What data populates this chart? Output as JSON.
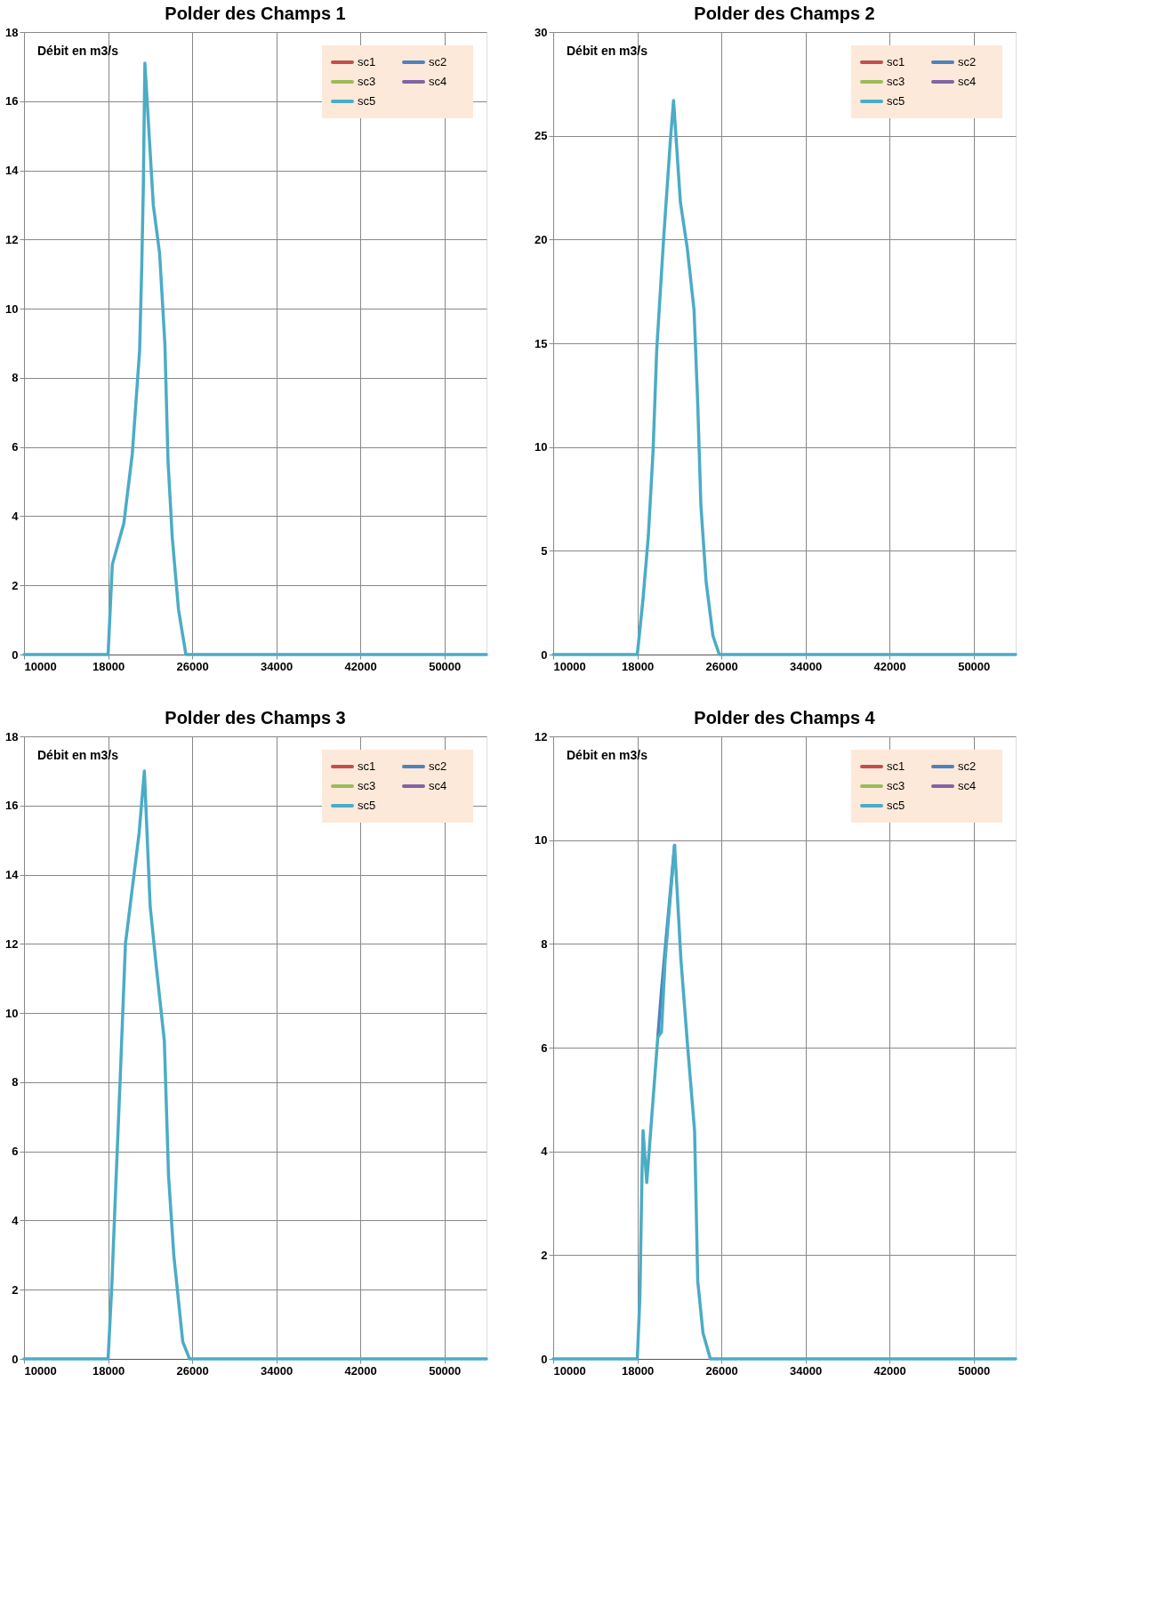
{
  "chart_data": [
    {
      "type": "line",
      "title": "Polder des Champs 1",
      "ylabel": "Débit en m3/s",
      "xlim": [
        10000,
        54000
      ],
      "xticks": [
        10000,
        18000,
        26000,
        34000,
        42000,
        50000
      ],
      "ylim": [
        0,
        18
      ],
      "yticks": [
        0,
        2,
        4,
        6,
        8,
        10,
        12,
        14,
        16,
        18
      ],
      "grid": true,
      "legend": "top right",
      "line_style": "solid",
      "x": [
        10000,
        18000,
        18400,
        19500,
        20300,
        21000,
        21200,
        21350,
        21500,
        22300,
        22900,
        23400,
        23700,
        24100,
        24700,
        25400,
        54000
      ],
      "series": [
        {
          "name": "sc1",
          "color": "#c0504d",
          "values": [
            null,
            null,
            null,
            null,
            null,
            null,
            null,
            null,
            null,
            null,
            null,
            null,
            null,
            null,
            null,
            null,
            null
          ]
        },
        {
          "name": "sc2",
          "color": "#4f81bd",
          "values": [
            null,
            null,
            null,
            null,
            null,
            null,
            null,
            null,
            null,
            null,
            null,
            null,
            null,
            null,
            null,
            null,
            null
          ]
        },
        {
          "name": "sc3",
          "color": "#9bbb59",
          "values": [
            null,
            null,
            null,
            null,
            null,
            null,
            null,
            null,
            null,
            null,
            null,
            null,
            null,
            null,
            null,
            null,
            null
          ]
        },
        {
          "name": "sc4",
          "color": "#8064a2",
          "values": [
            null,
            null,
            null,
            null,
            null,
            null,
            null,
            null,
            null,
            null,
            null,
            null,
            null,
            null,
            null,
            null,
            null
          ]
        },
        {
          "name": "sc5",
          "color": "#4bacc6",
          "values": [
            0,
            0,
            2.6,
            3.8,
            5.8,
            8.8,
            11.2,
            13.5,
            17.1,
            13.0,
            11.6,
            9.0,
            5.6,
            3.4,
            1.3,
            0,
            0
          ]
        }
      ]
    },
    {
      "type": "line",
      "title": "Polder des Champs 2",
      "ylabel": "Débit en m3/s",
      "xlim": [
        10000,
        54000
      ],
      "xticks": [
        10000,
        18000,
        26000,
        34000,
        42000,
        50000
      ],
      "ylim": [
        0,
        30
      ],
      "yticks": [
        0,
        5,
        10,
        15,
        20,
        25,
        30
      ],
      "grid": true,
      "legend": "top right",
      "line_style": "solid",
      "x": [
        10000,
        18000,
        18550,
        19050,
        19500,
        19850,
        20500,
        21150,
        21450,
        22100,
        22750,
        23400,
        23750,
        24050,
        24550,
        25200,
        25800,
        54000
      ],
      "series": [
        {
          "name": "sc1",
          "color": "#c0504d",
          "values": [
            null,
            null,
            null,
            null,
            null,
            null,
            null,
            null,
            null,
            null,
            null,
            null,
            null,
            null,
            null,
            null,
            null,
            null
          ]
        },
        {
          "name": "sc2",
          "color": "#4f81bd",
          "values": [
            null,
            null,
            null,
            null,
            null,
            null,
            null,
            null,
            null,
            null,
            null,
            null,
            null,
            null,
            null,
            null,
            null,
            null
          ]
        },
        {
          "name": "sc3",
          "color": "#9bbb59",
          "values": [
            null,
            null,
            null,
            null,
            null,
            null,
            null,
            null,
            null,
            null,
            null,
            null,
            null,
            null,
            null,
            null,
            null,
            null
          ]
        },
        {
          "name": "sc4",
          "color": "#8064a2",
          "values": [
            null,
            null,
            null,
            null,
            null,
            null,
            null,
            null,
            null,
            null,
            null,
            null,
            null,
            null,
            null,
            null,
            null,
            null
          ]
        },
        {
          "name": "sc5",
          "color": "#4bacc6",
          "values": [
            0,
            0,
            2.7,
            5.7,
            9.8,
            14.7,
            20,
            24.8,
            26.7,
            21.8,
            19.6,
            16.6,
            12.1,
            7.2,
            3.5,
            0.9,
            0,
            0
          ]
        }
      ]
    },
    {
      "type": "line",
      "title": "Polder des Champs 3",
      "ylabel": "Débit en m3/s",
      "xlim": [
        10000,
        54000
      ],
      "xticks": [
        10000,
        18000,
        26000,
        34000,
        42000,
        50000
      ],
      "ylim": [
        0,
        18
      ],
      "yticks": [
        0,
        2,
        4,
        6,
        8,
        10,
        12,
        14,
        16,
        18
      ],
      "grid": true,
      "legend": "top right",
      "line_style": "solid",
      "x": [
        10000,
        18000,
        18350,
        18650,
        19150,
        19650,
        20300,
        20950,
        21450,
        22000,
        22600,
        23350,
        23750,
        24250,
        25100,
        25750,
        54000
      ],
      "series": [
        {
          "name": "sc1",
          "color": "#c0504d",
          "values": [
            null,
            null,
            null,
            null,
            null,
            null,
            null,
            null,
            null,
            null,
            null,
            null,
            null,
            null,
            null,
            null,
            null
          ]
        },
        {
          "name": "sc2",
          "color": "#4f81bd",
          "values": [
            null,
            null,
            null,
            null,
            null,
            null,
            null,
            null,
            null,
            null,
            null,
            null,
            null,
            null,
            null,
            null,
            null
          ]
        },
        {
          "name": "sc3",
          "color": "#9bbb59",
          "values": [
            null,
            null,
            null,
            null,
            null,
            null,
            null,
            null,
            null,
            null,
            null,
            null,
            null,
            null,
            null,
            null,
            null
          ]
        },
        {
          "name": "sc4",
          "color": "#8064a2",
          "values": [
            null,
            null,
            null,
            null,
            null,
            null,
            null,
            null,
            null,
            null,
            null,
            null,
            null,
            null,
            null,
            null,
            null
          ]
        },
        {
          "name": "sc5",
          "color": "#4bacc6",
          "values": [
            0,
            0,
            2.1,
            4.4,
            8.1,
            12.0,
            13.6,
            15.2,
            17.0,
            13.1,
            11.3,
            9.2,
            5.3,
            3.0,
            0.5,
            0,
            0
          ]
        }
      ]
    },
    {
      "type": "line",
      "title": "Polder des Champs 4",
      "ylabel": "Débit en m3/s",
      "xlim": [
        10000,
        54000
      ],
      "xticks": [
        10000,
        18000,
        26000,
        34000,
        42000,
        50000
      ],
      "ylim": [
        0,
        12
      ],
      "yticks": [
        0,
        2,
        4,
        6,
        8,
        10,
        12
      ],
      "grid": true,
      "legend": "top right",
      "line_style": "solid",
      "x": [
        10000,
        18000,
        18250,
        18450,
        18550,
        18900,
        19200,
        19950,
        20300,
        20650,
        21550,
        22150,
        22800,
        23450,
        23750,
        24250,
        24950,
        54000
      ],
      "series": [
        {
          "name": "sc1",
          "color": "#c0504d",
          "values": [
            null,
            null,
            null,
            null,
            null,
            null,
            null,
            null,
            null,
            null,
            null,
            null,
            null,
            null,
            null,
            null,
            null,
            null
          ]
        },
        {
          "name": "sc2",
          "color": "#4f81bd",
          "values": [
            null,
            null,
            null,
            null,
            null,
            null,
            null,
            6.2,
            7.1,
            7.9,
            9.9,
            null,
            null,
            null,
            null,
            null,
            null,
            null
          ]
        },
        {
          "name": "sc3",
          "color": "#9bbb59",
          "values": [
            null,
            null,
            null,
            null,
            null,
            null,
            null,
            null,
            null,
            null,
            null,
            null,
            null,
            null,
            null,
            null,
            null,
            null
          ]
        },
        {
          "name": "sc4",
          "color": "#8064a2",
          "values": [
            null,
            null,
            null,
            null,
            null,
            null,
            null,
            null,
            null,
            null,
            null,
            null,
            null,
            null,
            null,
            null,
            null,
            null
          ]
        },
        {
          "name": "sc5",
          "color": "#4bacc6",
          "values": [
            0,
            0,
            1.2,
            3.6,
            4.4,
            3.4,
            4.2,
            6.2,
            6.3,
            7.7,
            9.9,
            7.7,
            6.0,
            4.4,
            1.5,
            0.5,
            0,
            0
          ]
        }
      ]
    }
  ]
}
